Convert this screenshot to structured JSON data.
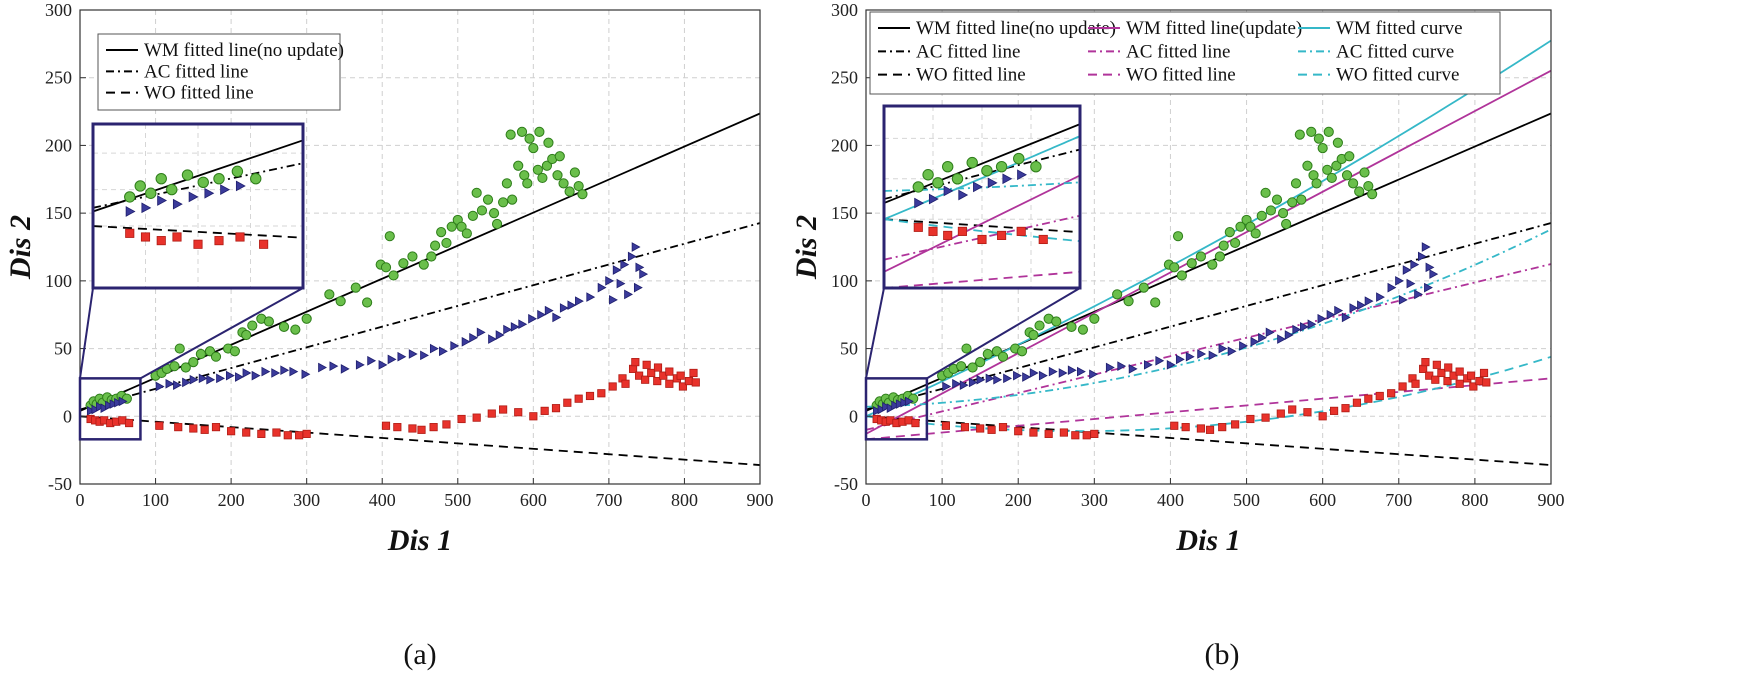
{
  "chart_data": [
    {
      "type": "scatter",
      "panel_label": "(a)",
      "xlabel": "Dis 1",
      "ylabel": "Dis 2",
      "xlim": [
        0,
        900
      ],
      "ylim": [
        -50,
        300
      ],
      "xticks": [
        0,
        100,
        200,
        300,
        400,
        500,
        600,
        700,
        800,
        900
      ],
      "yticks": [
        -50,
        0,
        50,
        100,
        150,
        200,
        250,
        300
      ],
      "grid": true,
      "legend_position": "top-left",
      "inset": {
        "xlim": [
          0,
          80
        ],
        "ylim": [
          -17,
          28
        ],
        "show_box": true
      },
      "series": [
        {
          "name": "WM",
          "marker": "circle",
          "color": "#6abf4b",
          "edge": "#2e7d1a"
        },
        {
          "name": "AC",
          "marker": "triangle-right",
          "color": "#3a3a9a",
          "edge": "#1f1f6e"
        },
        {
          "name": "WO",
          "marker": "square",
          "color": "#e8322b",
          "edge": "#b01b14"
        }
      ],
      "lines": [
        {
          "label": "WM fitted line(no update)",
          "kind": "line",
          "coef": [
            0.244,
            4
          ],
          "color": "#000000",
          "dash": "solid",
          "legend": true
        },
        {
          "label": "AC fitted line",
          "kind": "line",
          "coef": [
            0.153,
            5
          ],
          "color": "#000000",
          "dash": "dashdot",
          "legend": true
        },
        {
          "label": "WO fitted line",
          "kind": "line",
          "coef": [
            -0.04,
            0
          ],
          "color": "#000000",
          "dash": "dashed",
          "legend": true
        }
      ]
    },
    {
      "type": "scatter",
      "panel_label": "(b)",
      "xlabel": "Dis 1",
      "ylabel": "Dis 2",
      "xlim": [
        0,
        900
      ],
      "ylim": [
        -50,
        300
      ],
      "xticks": [
        0,
        100,
        200,
        300,
        400,
        500,
        600,
        700,
        800,
        900
      ],
      "yticks": [
        -50,
        0,
        50,
        100,
        150,
        200,
        250,
        300
      ],
      "grid": true,
      "legend_position": "top",
      "inset": {
        "xlim": [
          0,
          80
        ],
        "ylim": [
          -17,
          28
        ],
        "show_box": true
      },
      "series": [
        {
          "name": "WM",
          "marker": "circle",
          "color": "#6abf4b",
          "edge": "#2e7d1a"
        },
        {
          "name": "AC",
          "marker": "triangle-right",
          "color": "#3a3a9a",
          "edge": "#1f1f6e"
        },
        {
          "name": "WO",
          "marker": "square",
          "color": "#e8322b",
          "edge": "#b01b14"
        }
      ],
      "lines": [
        {
          "label": "WM fitted line(no update)",
          "kind": "line",
          "coef": [
            0.244,
            4
          ],
          "color": "#000000",
          "dash": "solid",
          "legend": true
        },
        {
          "label": "AC fitted line",
          "kind": "line",
          "coef": [
            0.153,
            5
          ],
          "color": "#000000",
          "dash": "dashdot",
          "legend": true
        },
        {
          "label": "WO fitted line",
          "kind": "line",
          "coef": [
            -0.04,
            0
          ],
          "color": "#000000",
          "dash": "dashed",
          "legend": true
        },
        {
          "label": "WM fitted line(update)",
          "kind": "line",
          "coef": [
            0.298,
            -13
          ],
          "color": "#b0349a",
          "dash": "solid",
          "legend": true
        },
        {
          "label": "AC fitted line",
          "kind": "line",
          "coef": [
            0.136,
            -10
          ],
          "color": "#b0349a",
          "dash": "dashdot",
          "legend": true
        },
        {
          "label": "WO fitted line",
          "kind": "line",
          "coef": [
            0.05,
            -17
          ],
          "color": "#b0349a",
          "dash": "dashed",
          "legend": true
        },
        {
          "label": "WM fitted curve",
          "kind": "curve",
          "coef": [
            6.25e-05,
            0.252,
            0
          ],
          "color": "#35b8c8",
          "dash": "solid",
          "legend": true
        },
        {
          "label": "AC fitted curve",
          "kind": "curve",
          "coef": [
            0.000145,
            0.015,
            7
          ],
          "color": "#35b8c8",
          "dash": "dashdot",
          "legend": true
        },
        {
          "label": "WO fitted curve",
          "kind": "curve",
          "coef": [
            0.000142,
            -0.079,
            0
          ],
          "color": "#35b8c8",
          "dash": "dashed",
          "legend": true
        }
      ]
    }
  ],
  "points": {
    "WM": [
      [
        14,
        8
      ],
      [
        18,
        11
      ],
      [
        22,
        9
      ],
      [
        26,
        13
      ],
      [
        30,
        10
      ],
      [
        36,
        14
      ],
      [
        42,
        12
      ],
      [
        48,
        13
      ],
      [
        55,
        15
      ],
      [
        62,
        13
      ],
      [
        100,
        30
      ],
      [
        108,
        32
      ],
      [
        115,
        35
      ],
      [
        125,
        37
      ],
      [
        132,
        50
      ],
      [
        140,
        36
      ],
      [
        150,
        40
      ],
      [
        160,
        46
      ],
      [
        172,
        48
      ],
      [
        180,
        44
      ],
      [
        196,
        50
      ],
      [
        205,
        48
      ],
      [
        215,
        62
      ],
      [
        220,
        60
      ],
      [
        228,
        67
      ],
      [
        240,
        72
      ],
      [
        250,
        70
      ],
      [
        270,
        66
      ],
      [
        285,
        64
      ],
      [
        300,
        72
      ],
      [
        330,
        90
      ],
      [
        345,
        85
      ],
      [
        365,
        95
      ],
      [
        380,
        84
      ],
      [
        398,
        112
      ],
      [
        405,
        110
      ],
      [
        410,
        133
      ],
      [
        415,
        104
      ],
      [
        428,
        113
      ],
      [
        440,
        118
      ],
      [
        455,
        112
      ],
      [
        465,
        118
      ],
      [
        470,
        126
      ],
      [
        478,
        136
      ],
      [
        485,
        128
      ],
      [
        492,
        140
      ],
      [
        500,
        145
      ],
      [
        505,
        140
      ],
      [
        512,
        135
      ],
      [
        520,
        148
      ],
      [
        525,
        165
      ],
      [
        532,
        152
      ],
      [
        540,
        160
      ],
      [
        548,
        150
      ],
      [
        552,
        142
      ],
      [
        560,
        158
      ],
      [
        565,
        172
      ],
      [
        572,
        160
      ],
      [
        580,
        185
      ],
      [
        588,
        178
      ],
      [
        592,
        172
      ],
      [
        600,
        198
      ],
      [
        606,
        182
      ],
      [
        612,
        176
      ],
      [
        618,
        185
      ],
      [
        625,
        190
      ],
      [
        632,
        178
      ],
      [
        640,
        172
      ],
      [
        648,
        166
      ],
      [
        655,
        180
      ],
      [
        660,
        170
      ],
      [
        665,
        164
      ],
      [
        570,
        208
      ],
      [
        585,
        210
      ],
      [
        595,
        205
      ],
      [
        608,
        210
      ],
      [
        620,
        202
      ],
      [
        635,
        192
      ]
    ],
    "AC": [
      [
        14,
        4
      ],
      [
        20,
        5
      ],
      [
        26,
        7
      ],
      [
        32,
        6
      ],
      [
        38,
        8
      ],
      [
        44,
        9
      ],
      [
        50,
        10
      ],
      [
        56,
        11
      ],
      [
        105,
        22
      ],
      [
        118,
        24
      ],
      [
        128,
        23
      ],
      [
        140,
        25
      ],
      [
        150,
        27
      ],
      [
        162,
        28
      ],
      [
        172,
        27
      ],
      [
        185,
        28
      ],
      [
        198,
        30
      ],
      [
        210,
        29
      ],
      [
        220,
        32
      ],
      [
        232,
        30
      ],
      [
        245,
        33
      ],
      [
        258,
        32
      ],
      [
        270,
        34
      ],
      [
        282,
        33
      ],
      [
        298,
        31
      ],
      [
        320,
        36
      ],
      [
        335,
        37
      ],
      [
        350,
        35
      ],
      [
        370,
        38
      ],
      [
        385,
        41
      ],
      [
        400,
        38
      ],
      [
        412,
        42
      ],
      [
        425,
        44
      ],
      [
        440,
        46
      ],
      [
        455,
        45
      ],
      [
        468,
        50
      ],
      [
        480,
        48
      ],
      [
        495,
        52
      ],
      [
        510,
        55
      ],
      [
        520,
        58
      ],
      [
        530,
        62
      ],
      [
        545,
        57
      ],
      [
        555,
        60
      ],
      [
        565,
        64
      ],
      [
        575,
        66
      ],
      [
        585,
        68
      ],
      [
        598,
        72
      ],
      [
        610,
        75
      ],
      [
        620,
        78
      ],
      [
        630,
        73
      ],
      [
        640,
        80
      ],
      [
        650,
        82
      ],
      [
        660,
        85
      ],
      [
        675,
        88
      ],
      [
        690,
        95
      ],
      [
        700,
        100
      ],
      [
        710,
        108
      ],
      [
        720,
        112
      ],
      [
        730,
        118
      ],
      [
        735,
        125
      ],
      [
        740,
        110
      ],
      [
        745,
        105
      ],
      [
        738,
        95
      ],
      [
        725,
        90
      ],
      [
        715,
        98
      ],
      [
        705,
        86
      ]
    ],
    "WO": [
      [
        14,
        -2
      ],
      [
        20,
        -3
      ],
      [
        26,
        -4
      ],
      [
        32,
        -3
      ],
      [
        40,
        -5
      ],
      [
        48,
        -4
      ],
      [
        56,
        -3
      ],
      [
        65,
        -5
      ],
      [
        105,
        -7
      ],
      [
        130,
        -8
      ],
      [
        150,
        -9
      ],
      [
        165,
        -10
      ],
      [
        180,
        -8
      ],
      [
        200,
        -11
      ],
      [
        220,
        -12
      ],
      [
        240,
        -13
      ],
      [
        260,
        -12
      ],
      [
        275,
        -14
      ],
      [
        290,
        -14
      ],
      [
        300,
        -13
      ],
      [
        405,
        -7
      ],
      [
        420,
        -8
      ],
      [
        440,
        -9
      ],
      [
        452,
        -10
      ],
      [
        468,
        -8
      ],
      [
        485,
        -6
      ],
      [
        505,
        -2
      ],
      [
        525,
        -1
      ],
      [
        545,
        2
      ],
      [
        560,
        5
      ],
      [
        580,
        3
      ],
      [
        600,
        0
      ],
      [
        615,
        4
      ],
      [
        630,
        6
      ],
      [
        645,
        10
      ],
      [
        660,
        13
      ],
      [
        675,
        15
      ],
      [
        690,
        17
      ],
      [
        705,
        22
      ],
      [
        718,
        28
      ],
      [
        722,
        24
      ],
      [
        732,
        35
      ],
      [
        740,
        30
      ],
      [
        748,
        27
      ],
      [
        756,
        32
      ],
      [
        764,
        26
      ],
      [
        772,
        30
      ],
      [
        780,
        24
      ],
      [
        790,
        28
      ],
      [
        798,
        22
      ],
      [
        806,
        26
      ],
      [
        812,
        32
      ],
      [
        735,
        40
      ],
      [
        750,
        38
      ],
      [
        765,
        36
      ],
      [
        780,
        33
      ],
      [
        795,
        30
      ],
      [
        815,
        25
      ]
    ]
  },
  "captions": {
    "a": "(a)",
    "b": "(b)"
  }
}
